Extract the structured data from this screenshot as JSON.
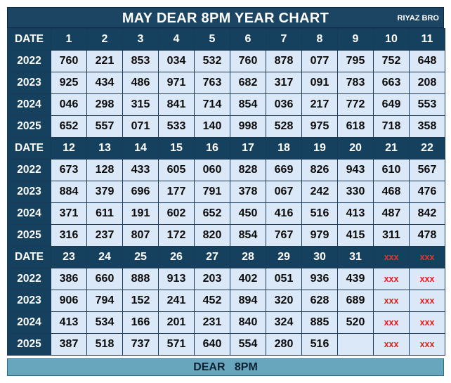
{
  "title": "MAY DEAR 8PM YEAR CHART",
  "brand": "RIYAZ BRO",
  "footer": "DEAR   8PM",
  "colors": {
    "header_bg": "#15405e",
    "cell_bg": "#dbe8f7",
    "footer_bg": "#68a6bd",
    "placeholder_text": "#e41a1a"
  },
  "sections": [
    {
      "header_label": "DATE",
      "dates": [
        "1",
        "2",
        "3",
        "4",
        "5",
        "6",
        "7",
        "8",
        "9",
        "10",
        "11"
      ],
      "rows": [
        {
          "year": "2022",
          "values": [
            "760",
            "221",
            "853",
            "034",
            "532",
            "760",
            "878",
            "077",
            "795",
            "752",
            "648"
          ]
        },
        {
          "year": "2023",
          "values": [
            "925",
            "434",
            "486",
            "971",
            "763",
            "682",
            "317",
            "091",
            "783",
            "663",
            "208"
          ]
        },
        {
          "year": "2024",
          "values": [
            "046",
            "298",
            "315",
            "841",
            "714",
            "854",
            "036",
            "217",
            "772",
            "649",
            "553"
          ]
        },
        {
          "year": "2025",
          "values": [
            "652",
            "557",
            "071",
            "533",
            "140",
            "998",
            "528",
            "975",
            "618",
            "718",
            "358"
          ]
        }
      ]
    },
    {
      "header_label": "DATE",
      "dates": [
        "12",
        "13",
        "14",
        "15",
        "16",
        "17",
        "18",
        "19",
        "20",
        "21",
        "22"
      ],
      "rows": [
        {
          "year": "2022",
          "values": [
            "673",
            "128",
            "433",
            "605",
            "060",
            "828",
            "669",
            "826",
            "943",
            "610",
            "567"
          ]
        },
        {
          "year": "2023",
          "values": [
            "884",
            "379",
            "696",
            "177",
            "791",
            "378",
            "067",
            "242",
            "330",
            "468",
            "476"
          ]
        },
        {
          "year": "2024",
          "values": [
            "371",
            "611",
            "191",
            "602",
            "652",
            "450",
            "416",
            "516",
            "413",
            "487",
            "842"
          ]
        },
        {
          "year": "2025",
          "values": [
            "316",
            "237",
            "807",
            "172",
            "820",
            "854",
            "767",
            "979",
            "415",
            "311",
            "478"
          ]
        }
      ]
    },
    {
      "header_label": "DATE",
      "dates": [
        "23",
        "24",
        "25",
        "26",
        "27",
        "28",
        "29",
        "30",
        "31",
        "xxx",
        "xxx"
      ],
      "rows": [
        {
          "year": "2022",
          "values": [
            "386",
            "660",
            "888",
            "913",
            "203",
            "402",
            "051",
            "936",
            "439",
            "xxx",
            "xxx"
          ]
        },
        {
          "year": "2023",
          "values": [
            "906",
            "794",
            "152",
            "241",
            "452",
            "894",
            "320",
            "628",
            "689",
            "xxx",
            "xxx"
          ]
        },
        {
          "year": "2024",
          "values": [
            "413",
            "534",
            "166",
            "201",
            "231",
            "840",
            "324",
            "885",
            "520",
            "xxx",
            "xxx"
          ]
        },
        {
          "year": "2025",
          "values": [
            "387",
            "518",
            "737",
            "571",
            "640",
            "554",
            "280",
            "516",
            "",
            "xxx",
            "xxx"
          ]
        }
      ]
    }
  ]
}
